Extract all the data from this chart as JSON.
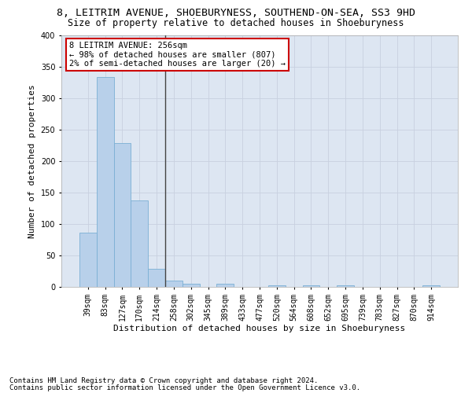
{
  "title": "8, LEITRIM AVENUE, SHOEBURYNESS, SOUTHEND-ON-SEA, SS3 9HD",
  "subtitle": "Size of property relative to detached houses in Shoeburyness",
  "xlabel": "Distribution of detached houses by size in Shoeburyness",
  "ylabel": "Number of detached properties",
  "categories": [
    "39sqm",
    "83sqm",
    "127sqm",
    "170sqm",
    "214sqm",
    "258sqm",
    "302sqm",
    "345sqm",
    "389sqm",
    "433sqm",
    "477sqm",
    "520sqm",
    "564sqm",
    "608sqm",
    "652sqm",
    "695sqm",
    "739sqm",
    "783sqm",
    "827sqm",
    "870sqm",
    "914sqm"
  ],
  "values": [
    86,
    334,
    229,
    137,
    29,
    10,
    5,
    0,
    5,
    0,
    0,
    3,
    0,
    3,
    0,
    3,
    0,
    0,
    0,
    0,
    3
  ],
  "bar_color": "#b8d0ea",
  "bar_edge_color": "#7aafd4",
  "grid_color": "#c8d0e0",
  "bg_color": "#dde6f2",
  "annotation_box_text": "8 LEITRIM AVENUE: 256sqm\n← 98% of detached houses are smaller (807)\n2% of semi-detached houses are larger (20) →",
  "annotation_box_color": "#ffffff",
  "annotation_box_edge_color": "#cc0000",
  "vline_x_index": 4,
  "ylim": [
    0,
    400
  ],
  "yticks": [
    0,
    50,
    100,
    150,
    200,
    250,
    300,
    350,
    400
  ],
  "footnote1": "Contains HM Land Registry data © Crown copyright and database right 2024.",
  "footnote2": "Contains public sector information licensed under the Open Government Licence v3.0.",
  "title_fontsize": 9.5,
  "subtitle_fontsize": 8.5,
  "label_fontsize": 8,
  "tick_fontsize": 7,
  "annot_fontsize": 7.5,
  "footnote_fontsize": 6.5
}
